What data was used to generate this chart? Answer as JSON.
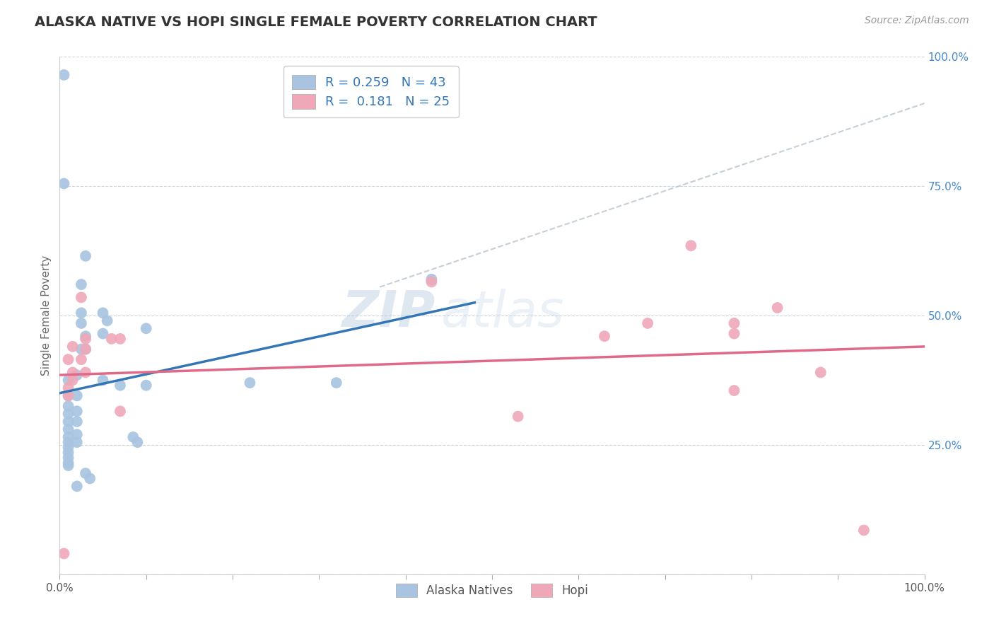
{
  "title": "ALASKA NATIVE VS HOPI SINGLE FEMALE POVERTY CORRELATION CHART",
  "source": "Source: ZipAtlas.com",
  "ylabel": "Single Female Poverty",
  "alaska_color": "#a8c4e0",
  "hopi_color": "#f0a8b8",
  "alaska_line_color": "#3375b5",
  "hopi_line_color": "#e06888",
  "diag_line_color": "#b8c4cc",
  "watermark_zip": "ZIP",
  "watermark_atlas": "atlas",
  "alaska_points": [
    [
      0.005,
      0.965
    ],
    [
      0.005,
      0.755
    ],
    [
      0.01,
      0.375
    ],
    [
      0.01,
      0.345
    ],
    [
      0.01,
      0.325
    ],
    [
      0.01,
      0.31
    ],
    [
      0.01,
      0.295
    ],
    [
      0.01,
      0.28
    ],
    [
      0.01,
      0.265
    ],
    [
      0.01,
      0.255
    ],
    [
      0.01,
      0.245
    ],
    [
      0.01,
      0.235
    ],
    [
      0.01,
      0.225
    ],
    [
      0.01,
      0.215
    ],
    [
      0.01,
      0.21
    ],
    [
      0.02,
      0.385
    ],
    [
      0.02,
      0.345
    ],
    [
      0.02,
      0.315
    ],
    [
      0.02,
      0.295
    ],
    [
      0.02,
      0.27
    ],
    [
      0.02,
      0.255
    ],
    [
      0.02,
      0.17
    ],
    [
      0.025,
      0.56
    ],
    [
      0.025,
      0.505
    ],
    [
      0.025,
      0.485
    ],
    [
      0.025,
      0.435
    ],
    [
      0.03,
      0.615
    ],
    [
      0.03,
      0.46
    ],
    [
      0.03,
      0.435
    ],
    [
      0.05,
      0.505
    ],
    [
      0.05,
      0.465
    ],
    [
      0.05,
      0.375
    ],
    [
      0.055,
      0.49
    ],
    [
      0.07,
      0.365
    ],
    [
      0.085,
      0.265
    ],
    [
      0.09,
      0.255
    ],
    [
      0.1,
      0.365
    ],
    [
      0.1,
      0.475
    ],
    [
      0.22,
      0.37
    ],
    [
      0.32,
      0.37
    ],
    [
      0.43,
      0.57
    ],
    [
      0.03,
      0.195
    ],
    [
      0.035,
      0.185
    ]
  ],
  "hopi_points": [
    [
      0.005,
      0.04
    ],
    [
      0.01,
      0.415
    ],
    [
      0.01,
      0.36
    ],
    [
      0.01,
      0.345
    ],
    [
      0.015,
      0.44
    ],
    [
      0.015,
      0.39
    ],
    [
      0.015,
      0.375
    ],
    [
      0.025,
      0.535
    ],
    [
      0.025,
      0.415
    ],
    [
      0.03,
      0.455
    ],
    [
      0.03,
      0.435
    ],
    [
      0.03,
      0.39
    ],
    [
      0.06,
      0.455
    ],
    [
      0.07,
      0.315
    ],
    [
      0.07,
      0.455
    ],
    [
      0.43,
      0.565
    ],
    [
      0.53,
      0.305
    ],
    [
      0.63,
      0.46
    ],
    [
      0.68,
      0.485
    ],
    [
      0.73,
      0.635
    ],
    [
      0.78,
      0.485
    ],
    [
      0.78,
      0.465
    ],
    [
      0.78,
      0.355
    ],
    [
      0.83,
      0.515
    ],
    [
      0.88,
      0.39
    ],
    [
      0.93,
      0.085
    ]
  ],
  "alaska_line": [
    [
      0.0,
      0.35
    ],
    [
      0.48,
      0.525
    ]
  ],
  "hopi_line": [
    [
      0.0,
      0.385
    ],
    [
      1.0,
      0.44
    ]
  ],
  "diag_line": [
    [
      0.37,
      0.555
    ],
    [
      1.0,
      0.91
    ]
  ],
  "xlim": [
    0.0,
    1.0
  ],
  "ylim": [
    0.0,
    1.0
  ],
  "x_ticks": [
    0.0,
    0.1,
    0.2,
    0.3,
    0.4,
    0.5,
    0.6,
    0.7,
    0.8,
    0.9,
    1.0
  ],
  "y_ticks": [
    0.0,
    0.25,
    0.5,
    0.75,
    1.0
  ],
  "x_tick_labels": [
    "0.0%",
    "",
    "",
    "",
    "",
    "",
    "",
    "",
    "",
    "",
    "100.0%"
  ],
  "y_tick_labels": [
    "",
    "25.0%",
    "50.0%",
    "75.0%",
    "100.0%"
  ]
}
